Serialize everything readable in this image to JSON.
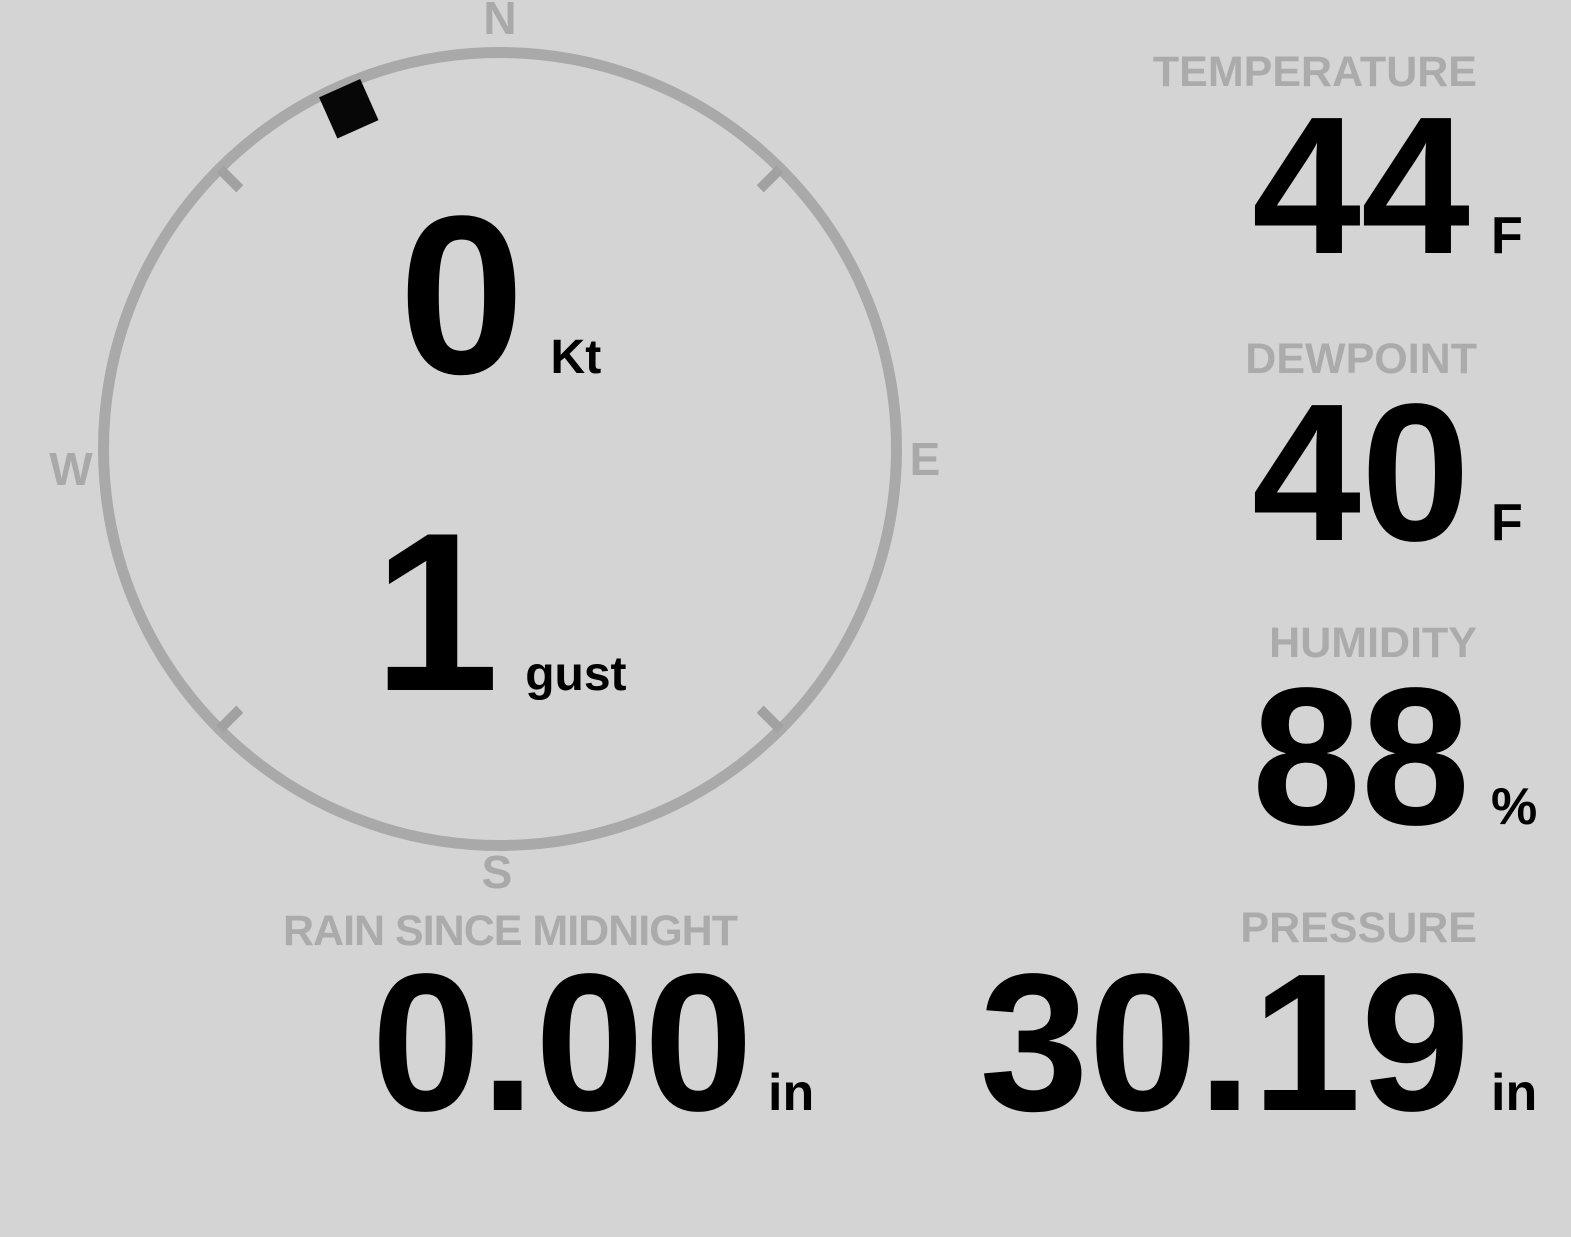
{
  "display": {
    "background_color": "#d4d4d4",
    "muted_color": "#ababab",
    "ring_color": "#a9a9a9",
    "value_color": "#000000"
  },
  "wind": {
    "compass": {
      "north": "N",
      "east": "E",
      "south": "S",
      "west": "W"
    },
    "direction_degrees": 336,
    "speed": {
      "value": "0",
      "unit": "Kt"
    },
    "gust": {
      "value": "1",
      "unit": "gust"
    }
  },
  "readings": {
    "temperature": {
      "label": "TEMPERATURE",
      "value": "44",
      "unit": "F"
    },
    "dewpoint": {
      "label": "DEWPOINT",
      "value": "40",
      "unit": "F"
    },
    "humidity": {
      "label": "HUMIDITY",
      "value": "88",
      "unit": "%"
    },
    "pressure": {
      "label": "PRESSURE",
      "value": "30.19",
      "unit": "in"
    },
    "rain": {
      "label": "RAIN SINCE MIDNIGHT",
      "value": "0.00",
      "unit": "in"
    }
  }
}
